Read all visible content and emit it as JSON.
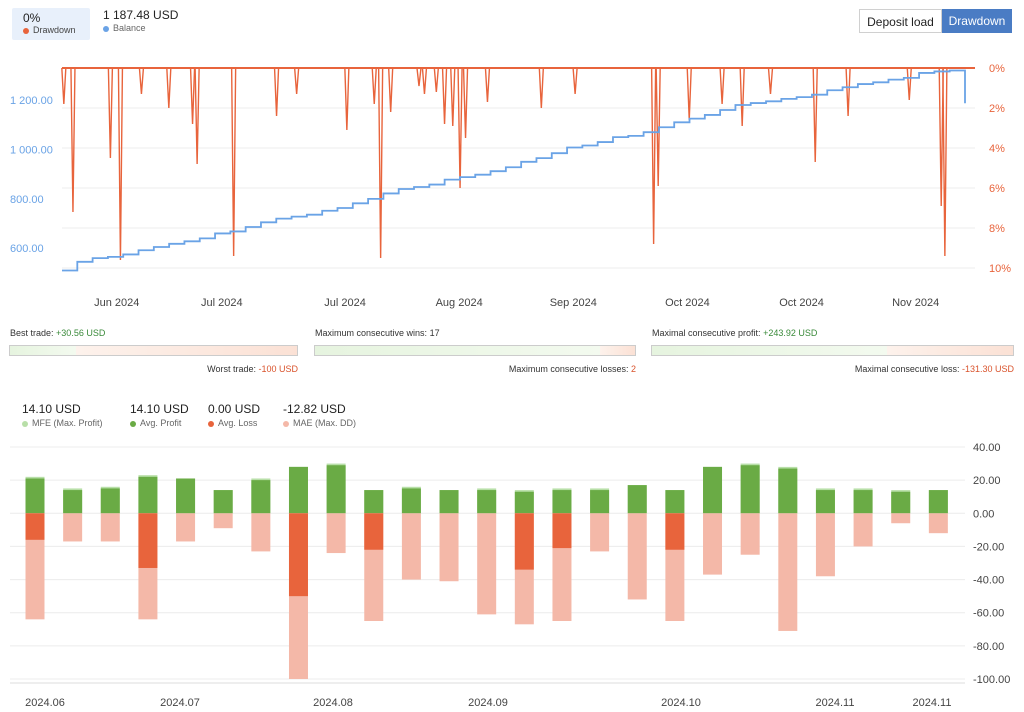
{
  "header": {
    "drawdown_value": "0%",
    "drawdown_label": "Drawdown",
    "balance_value": "1 187.48 USD",
    "balance_label": "Balance",
    "deposit_load_btn": "Deposit load",
    "drawdown_btn": "Drawdown",
    "colors": {
      "drawdown": "#e8643c",
      "balance": "#6aa3e6",
      "active_button": "#4a7cc4"
    }
  },
  "stats": {
    "best_trade_label": "Best trade:",
    "best_trade_value": "+30.56 USD",
    "worst_trade_label": "Worst trade:",
    "worst_trade_value": "-100 USD",
    "max_wins_label": "Maximum consecutive wins:",
    "max_wins_value": "17",
    "max_losses_label": "Maximum consecutive losses:",
    "max_losses_value": "2",
    "max_profit_label": "Maximal consecutive profit:",
    "max_profit_value": "+243.92 USD",
    "max_loss_label": "Maximal consecutive loss:",
    "max_loss_value": "-131.30 USD",
    "best_worst_fill": 0.23,
    "wins_losses_fill": 0.89,
    "profit_loss_fill": 0.65
  },
  "summary": [
    {
      "value": "14.10 USD",
      "label": "MFE (Max. Profit)",
      "color": "#b8dfa8"
    },
    {
      "value": "14.10 USD",
      "label": "Avg. Profit",
      "color": "#6aab45"
    },
    {
      "value": "0.00 USD",
      "label": "Avg. Loss",
      "color": "#e8643c"
    },
    {
      "value": "-12.82 USD",
      "label": "MAE (Max. DD)",
      "color": "#f4b8a8"
    }
  ],
  "chart_data": [
    {
      "type": "line",
      "x_labels": [
        "Jun 2024",
        "Jul 2024",
        "Jul 2024",
        "Aug 2024",
        "Sep 2024",
        "Oct 2024",
        "Oct 2024",
        "Nov 2024"
      ],
      "left_axis": {
        "ticks": [
          "600.00",
          "800.00",
          "1 000.00",
          "1 200.00"
        ],
        "range": [
          520,
          1330
        ]
      },
      "right_axis": {
        "ticks": [
          "0%",
          "2%",
          "4%",
          "6%",
          "8%",
          "10%"
        ],
        "range": [
          0,
          10
        ]
      },
      "series": [
        {
          "name": "Balance",
          "axis": "left",
          "color": "#6aa3e6",
          "values": [
            510,
            545,
            560,
            565,
            575,
            592,
            605,
            618,
            628,
            640,
            660,
            668,
            686,
            705,
            720,
            728,
            736,
            752,
            763,
            782,
            800,
            822,
            840,
            848,
            858,
            878,
            888,
            898,
            912,
            928,
            950,
            965,
            985,
            1008,
            1016,
            1030,
            1050,
            1055,
            1070,
            1090,
            1110,
            1125,
            1140,
            1160,
            1180,
            1188,
            1195,
            1205,
            1212,
            1222,
            1240,
            1252,
            1265,
            1272,
            1283,
            1290,
            1310,
            1316,
            1320,
            1187
          ]
        },
        {
          "name": "Drawdown",
          "axis": "right",
          "color": "#e8643c",
          "spikes": [
            [
              0.2,
              1.8
            ],
            [
              1.2,
              7.2
            ],
            [
              5.3,
              4.5
            ],
            [
              6.4,
              9.6
            ],
            [
              8.7,
              1.3
            ],
            [
              11.7,
              2.0
            ],
            [
              14.3,
              2.8
            ],
            [
              14.8,
              4.8
            ],
            [
              18.8,
              9.4
            ],
            [
              23.5,
              2.4
            ],
            [
              25.7,
              1.3
            ],
            [
              31.2,
              3.1
            ],
            [
              34.2,
              1.8
            ],
            [
              34.9,
              9.5
            ],
            [
              36.0,
              2.2
            ],
            [
              39.1,
              0.9
            ],
            [
              39.7,
              1.3
            ],
            [
              41.0,
              1.2
            ],
            [
              41.9,
              2.8
            ],
            [
              42.8,
              2.9
            ],
            [
              43.6,
              6.0
            ],
            [
              44.2,
              3.5
            ],
            [
              46.6,
              1.7
            ],
            [
              52.5,
              2.0
            ],
            [
              56.2,
              1.3
            ],
            [
              64.8,
              8.8
            ],
            [
              65.3,
              5.9
            ],
            [
              68.7,
              2.6
            ],
            [
              72.3,
              1.8
            ],
            [
              74.5,
              2.9
            ],
            [
              77.6,
              1.3
            ],
            [
              82.5,
              4.7
            ],
            [
              86.1,
              2.4
            ],
            [
              92.8,
              1.6
            ],
            [
              96.3,
              6.9
            ],
            [
              96.7,
              9.4
            ]
          ]
        }
      ]
    },
    {
      "type": "bar",
      "categories": [
        "2024.06",
        "",
        "",
        "",
        "2024.07",
        "",
        "",
        "",
        "2024.08",
        "",
        "",
        "",
        "",
        "2024.09",
        "",
        "",
        "",
        "",
        "2024.10",
        "",
        "",
        "",
        "2024.11",
        "",
        ""
      ],
      "x_labels": [
        "2024.06",
        "2024.07",
        "2024.08",
        "2024.09",
        "2024.10",
        "2024.11",
        "2024.11"
      ],
      "ylim": [
        -100,
        40
      ],
      "y_ticks": [
        "40.00",
        "20.00",
        "0.00",
        "-20.00",
        "-40.00",
        "-60.00",
        "-80.00",
        "-100.00"
      ],
      "series": [
        {
          "name": "MFE (Max. Profit)",
          "color": "#b8dfa8",
          "values": [
            22,
            15,
            16,
            23,
            21,
            14,
            21,
            28,
            30,
            14,
            16,
            14,
            15,
            14,
            15,
            15,
            17,
            14,
            28,
            30,
            28,
            15,
            15,
            14,
            14
          ]
        },
        {
          "name": "Avg. Profit",
          "color": "#6aab45",
          "values": [
            21,
            14,
            15,
            22,
            21,
            14,
            20,
            28,
            29,
            14,
            15,
            14,
            14,
            13,
            14,
            14,
            17,
            14,
            28,
            29,
            27,
            14,
            14,
            13,
            14
          ]
        },
        {
          "name": "Avg. Loss",
          "color": "#e8643c",
          "values": [
            -16,
            0,
            0,
            -33,
            0,
            0,
            0,
            -50,
            0,
            -22,
            0,
            0,
            0,
            -34,
            -21,
            0,
            0,
            -22,
            0,
            0,
            0,
            0,
            0,
            0,
            0
          ]
        },
        {
          "name": "MAE (Max. DD)",
          "color": "#f4b8a8",
          "values": [
            -64,
            -17,
            -17,
            -64,
            -17,
            -9,
            -23,
            -100,
            -24,
            -65,
            -40,
            -41,
            -61,
            -67,
            -65,
            -23,
            -52,
            -65,
            -37,
            -25,
            -71,
            -38,
            -20,
            -6,
            -12
          ]
        }
      ]
    }
  ]
}
